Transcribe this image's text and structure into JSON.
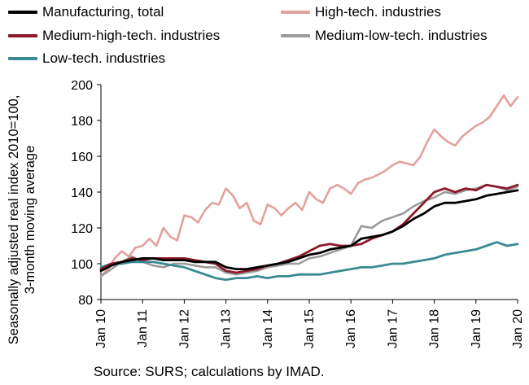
{
  "chart_data": {
    "type": "line",
    "title": "",
    "ylabel_lines": [
      "Seasonally adjusted real  index 2010=100,",
      "3-month moving average"
    ],
    "xlabel": "",
    "ylim": [
      80,
      200
    ],
    "yticks": [
      80,
      100,
      120,
      140,
      160,
      180,
      200
    ],
    "xlim": [
      2010.0,
      2020.0
    ],
    "xticks": [
      {
        "value": 2010,
        "label": "Jan 10"
      },
      {
        "value": 2011,
        "label": "Jan 11"
      },
      {
        "value": 2012,
        "label": "Jan 12"
      },
      {
        "value": 2013,
        "label": "Jan 13"
      },
      {
        "value": 2014,
        "label": "Jan 14"
      },
      {
        "value": 2015,
        "label": "Jan 15"
      },
      {
        "value": 2016,
        "label": "Jan 16"
      },
      {
        "value": 2017,
        "label": "Jan 17"
      },
      {
        "value": 2018,
        "label": "Jan 18"
      },
      {
        "value": 2019,
        "label": "Jan 19"
      },
      {
        "value": 2020,
        "label": "Jan 20"
      }
    ],
    "grid": false,
    "legend_position": "top",
    "series": [
      {
        "name": "Manufacturing, total",
        "color": "#000000",
        "values": [
          [
            2010.0,
            96
          ],
          [
            2010.25,
            99
          ],
          [
            2010.5,
            101
          ],
          [
            2010.75,
            102
          ],
          [
            2011.0,
            103
          ],
          [
            2011.25,
            103
          ],
          [
            2011.5,
            102
          ],
          [
            2011.75,
            102
          ],
          [
            2012.0,
            102
          ],
          [
            2012.25,
            101
          ],
          [
            2012.5,
            101
          ],
          [
            2012.75,
            101
          ],
          [
            2013.0,
            98
          ],
          [
            2013.25,
            97
          ],
          [
            2013.5,
            97
          ],
          [
            2013.75,
            98
          ],
          [
            2014.0,
            99
          ],
          [
            2014.25,
            100
          ],
          [
            2014.5,
            101
          ],
          [
            2014.75,
            103
          ],
          [
            2015.0,
            105
          ],
          [
            2015.25,
            106
          ],
          [
            2015.5,
            108
          ],
          [
            2015.75,
            109
          ],
          [
            2016.0,
            110
          ],
          [
            2016.25,
            114
          ],
          [
            2016.5,
            115
          ],
          [
            2016.75,
            116
          ],
          [
            2017.0,
            118
          ],
          [
            2017.25,
            121
          ],
          [
            2017.5,
            125
          ],
          [
            2017.75,
            128
          ],
          [
            2018.0,
            132
          ],
          [
            2018.25,
            134
          ],
          [
            2018.5,
            134
          ],
          [
            2018.75,
            135
          ],
          [
            2019.0,
            136
          ],
          [
            2019.25,
            138
          ],
          [
            2019.5,
            139
          ],
          [
            2019.75,
            140
          ],
          [
            2020.0,
            141
          ]
        ]
      },
      {
        "name": "High-tech. industries",
        "color": "#e3a19c",
        "values": [
          [
            2010.0,
            93
          ],
          [
            2010.17,
            97
          ],
          [
            2010.33,
            103
          ],
          [
            2010.5,
            107
          ],
          [
            2010.67,
            104
          ],
          [
            2010.83,
            109
          ],
          [
            2011.0,
            110
          ],
          [
            2011.17,
            114
          ],
          [
            2011.33,
            110
          ],
          [
            2011.5,
            120
          ],
          [
            2011.67,
            115
          ],
          [
            2011.83,
            113
          ],
          [
            2012.0,
            127
          ],
          [
            2012.17,
            126
          ],
          [
            2012.33,
            123
          ],
          [
            2012.5,
            130
          ],
          [
            2012.67,
            134
          ],
          [
            2012.83,
            133
          ],
          [
            2013.0,
            142
          ],
          [
            2013.17,
            138
          ],
          [
            2013.33,
            131
          ],
          [
            2013.5,
            134
          ],
          [
            2013.67,
            124
          ],
          [
            2013.83,
            122
          ],
          [
            2014.0,
            133
          ],
          [
            2014.17,
            131
          ],
          [
            2014.33,
            127
          ],
          [
            2014.5,
            131
          ],
          [
            2014.67,
            134
          ],
          [
            2014.83,
            130
          ],
          [
            2015.0,
            140
          ],
          [
            2015.17,
            136
          ],
          [
            2015.33,
            134
          ],
          [
            2015.5,
            142
          ],
          [
            2015.67,
            144
          ],
          [
            2015.83,
            142
          ],
          [
            2016.0,
            139
          ],
          [
            2016.17,
            145
          ],
          [
            2016.33,
            147
          ],
          [
            2016.5,
            148
          ],
          [
            2016.67,
            150
          ],
          [
            2016.83,
            152
          ],
          [
            2017.0,
            155
          ],
          [
            2017.17,
            157
          ],
          [
            2017.33,
            156
          ],
          [
            2017.5,
            155
          ],
          [
            2017.67,
            160
          ],
          [
            2017.83,
            168
          ],
          [
            2018.0,
            175
          ],
          [
            2018.17,
            171
          ],
          [
            2018.33,
            168
          ],
          [
            2018.5,
            166
          ],
          [
            2018.67,
            171
          ],
          [
            2018.83,
            174
          ],
          [
            2019.0,
            177
          ],
          [
            2019.17,
            179
          ],
          [
            2019.33,
            182
          ],
          [
            2019.5,
            188
          ],
          [
            2019.67,
            194
          ],
          [
            2019.83,
            188
          ],
          [
            2020.0,
            193
          ]
        ]
      },
      {
        "name": "Medium-high-tech. industries",
        "color": "#8b1a2b",
        "values": [
          [
            2010.0,
            97
          ],
          [
            2010.25,
            100
          ],
          [
            2010.5,
            101
          ],
          [
            2010.75,
            103
          ],
          [
            2011.0,
            102
          ],
          [
            2011.25,
            103
          ],
          [
            2011.5,
            103
          ],
          [
            2011.75,
            103
          ],
          [
            2012.0,
            103
          ],
          [
            2012.25,
            102
          ],
          [
            2012.5,
            101
          ],
          [
            2012.75,
            100
          ],
          [
            2013.0,
            96
          ],
          [
            2013.25,
            95
          ],
          [
            2013.5,
            96
          ],
          [
            2013.75,
            97
          ],
          [
            2014.0,
            99
          ],
          [
            2014.25,
            100
          ],
          [
            2014.5,
            102
          ],
          [
            2014.75,
            104
          ],
          [
            2015.0,
            107
          ],
          [
            2015.25,
            110
          ],
          [
            2015.5,
            111
          ],
          [
            2015.75,
            110
          ],
          [
            2016.0,
            110
          ],
          [
            2016.25,
            111
          ],
          [
            2016.5,
            114
          ],
          [
            2016.75,
            116
          ],
          [
            2017.0,
            118
          ],
          [
            2017.25,
            122
          ],
          [
            2017.5,
            128
          ],
          [
            2017.75,
            134
          ],
          [
            2018.0,
            140
          ],
          [
            2018.25,
            142
          ],
          [
            2018.5,
            140
          ],
          [
            2018.75,
            142
          ],
          [
            2019.0,
            141
          ],
          [
            2019.25,
            144
          ],
          [
            2019.5,
            143
          ],
          [
            2019.75,
            142
          ],
          [
            2020.0,
            144
          ]
        ]
      },
      {
        "name": "Medium-low-tech. industries",
        "color": "#9b9b9b",
        "values": [
          [
            2010.0,
            93
          ],
          [
            2010.25,
            97
          ],
          [
            2010.5,
            101
          ],
          [
            2010.75,
            104
          ],
          [
            2011.0,
            101
          ],
          [
            2011.25,
            99
          ],
          [
            2011.5,
            98
          ],
          [
            2011.75,
            100
          ],
          [
            2012.0,
            100
          ],
          [
            2012.25,
            99
          ],
          [
            2012.5,
            98
          ],
          [
            2012.75,
            98
          ],
          [
            2013.0,
            95
          ],
          [
            2013.25,
            94
          ],
          [
            2013.5,
            95
          ],
          [
            2013.75,
            96
          ],
          [
            2014.0,
            98
          ],
          [
            2014.25,
            99
          ],
          [
            2014.5,
            100
          ],
          [
            2014.75,
            100
          ],
          [
            2015.0,
            103
          ],
          [
            2015.25,
            104
          ],
          [
            2015.5,
            106
          ],
          [
            2015.75,
            108
          ],
          [
            2016.0,
            110
          ],
          [
            2016.25,
            121
          ],
          [
            2016.5,
            120
          ],
          [
            2016.75,
            124
          ],
          [
            2017.0,
            126
          ],
          [
            2017.25,
            128
          ],
          [
            2017.5,
            132
          ],
          [
            2017.75,
            135
          ],
          [
            2018.0,
            137
          ],
          [
            2018.25,
            140
          ],
          [
            2018.5,
            139
          ],
          [
            2018.75,
            141
          ],
          [
            2019.0,
            142
          ],
          [
            2019.25,
            144
          ],
          [
            2019.5,
            143
          ],
          [
            2019.75,
            141
          ],
          [
            2020.0,
            143
          ]
        ]
      },
      {
        "name": "Low-tech. industries",
        "color": "#3a8a92",
        "values": [
          [
            2010.0,
            98
          ],
          [
            2010.25,
            100
          ],
          [
            2010.5,
            100
          ],
          [
            2010.75,
            101
          ],
          [
            2011.0,
            101
          ],
          [
            2011.25,
            101
          ],
          [
            2011.5,
            100
          ],
          [
            2011.75,
            99
          ],
          [
            2012.0,
            98
          ],
          [
            2012.25,
            96
          ],
          [
            2012.5,
            94
          ],
          [
            2012.75,
            92
          ],
          [
            2013.0,
            91
          ],
          [
            2013.25,
            92
          ],
          [
            2013.5,
            92
          ],
          [
            2013.75,
            93
          ],
          [
            2014.0,
            92
          ],
          [
            2014.25,
            93
          ],
          [
            2014.5,
            93
          ],
          [
            2014.75,
            94
          ],
          [
            2015.0,
            94
          ],
          [
            2015.25,
            94
          ],
          [
            2015.5,
            95
          ],
          [
            2015.75,
            96
          ],
          [
            2016.0,
            97
          ],
          [
            2016.25,
            98
          ],
          [
            2016.5,
            98
          ],
          [
            2016.75,
            99
          ],
          [
            2017.0,
            100
          ],
          [
            2017.25,
            100
          ],
          [
            2017.5,
            101
          ],
          [
            2017.75,
            102
          ],
          [
            2018.0,
            103
          ],
          [
            2018.25,
            105
          ],
          [
            2018.5,
            106
          ],
          [
            2018.75,
            107
          ],
          [
            2019.0,
            108
          ],
          [
            2019.25,
            110
          ],
          [
            2019.5,
            112
          ],
          [
            2019.75,
            110
          ],
          [
            2020.0,
            111
          ]
        ]
      }
    ]
  },
  "source_note": "Source: SURS; calculations by IMAD."
}
